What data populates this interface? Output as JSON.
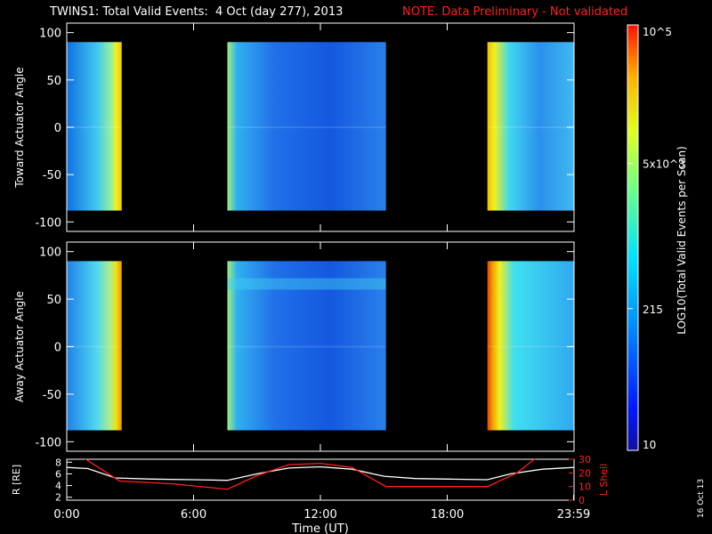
{
  "header": {
    "title": "TWINS1: Total Valid Events:  4 Oct (day 277), 2013",
    "notice": "NOTE. Data Preliminary - Not validated",
    "notice_color": "#ff2020"
  },
  "stamp": "16 Oct 13",
  "chart_data": [
    {
      "type": "heatmap",
      "panel": "toward",
      "ylabel": "Toward Actuator Angle",
      "yticks": [
        "100",
        "50",
        "0",
        "-50",
        "-100"
      ],
      "ylim": [
        -110,
        110
      ],
      "data_yrange": [
        -88,
        90
      ],
      "xlim": [
        0,
        24
      ],
      "data_blocks_hours": [
        [
          0,
          2.6
        ],
        [
          7.6,
          15.1
        ],
        [
          19.9,
          24
        ]
      ],
      "colormap": "rainbow (blue to red)",
      "background": "#000000"
    },
    {
      "type": "heatmap",
      "panel": "away",
      "ylabel": "Away Actuator Angle",
      "yticks": [
        "100",
        "50",
        "0",
        "-50",
        "-100"
      ],
      "ylim": [
        -110,
        110
      ],
      "data_yrange": [
        -88,
        90
      ],
      "xlim": [
        0,
        24
      ],
      "data_blocks_hours": [
        [
          0,
          2.6
        ],
        [
          7.6,
          15.1
        ],
        [
          19.9,
          24
        ]
      ],
      "colormap": "rainbow (blue to red)",
      "background": "#000000"
    },
    {
      "type": "line",
      "panel": "orbit",
      "ylabel_left": "R [RE]",
      "ylabel_right": "L Shell",
      "left_yticks": [
        "8",
        "6",
        "4",
        "2"
      ],
      "right_yticks": [
        "30",
        "20",
        "10",
        "0"
      ],
      "ylim_left": [
        1.5,
        8.5
      ],
      "ylim_right": [
        0,
        30
      ],
      "xlabel": "Time (UT)",
      "xticks": [
        "0:00",
        "6:00",
        "12:00",
        "18:00",
        "23:59"
      ],
      "xlim": [
        0,
        24
      ],
      "series": [
        {
          "axis": "left",
          "color": "#ffffff",
          "x": [
            0,
            1,
            2.3,
            4,
            6,
            7.6,
            9,
            10.5,
            12,
            13.5,
            15,
            16.5,
            18,
            19.9,
            21,
            22.5,
            24
          ],
          "y": [
            7.1,
            6.9,
            5.3,
            5.1,
            5.0,
            4.9,
            6.0,
            7.0,
            7.2,
            6.8,
            5.6,
            5.2,
            5.1,
            5.0,
            6.0,
            6.8,
            7.1
          ]
        },
        {
          "axis": "right",
          "color": "#ff2020",
          "x": [
            0.8,
            2.5,
            5,
            7.6,
            9,
            10.5,
            12,
            13.5,
            15.1,
            18,
            19.9,
            21.3,
            22.2
          ],
          "y": [
            31,
            14,
            12,
            8,
            18,
            26,
            27,
            24,
            10,
            10,
            10,
            20,
            31
          ]
        }
      ]
    }
  ],
  "colorbar": {
    "label": "LOG10(Total Valid Events per Scan)",
    "ticks": [
      "10",
      "215",
      "5x10^3",
      "10^5"
    ],
    "tick_values": [
      10,
      215,
      5000,
      100000
    ],
    "range": [
      10,
      100000
    ],
    "scale": "log"
  }
}
